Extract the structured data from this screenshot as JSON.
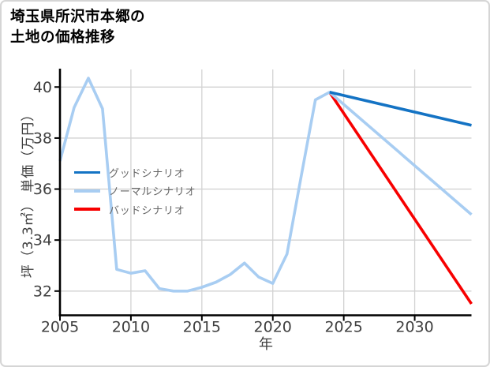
{
  "frame": {
    "border_color": "#d5d5d5",
    "background": "#ffffff"
  },
  "title": {
    "line1": "埼玉県所沢市本郷の",
    "line2": "土地の価格推移"
  },
  "chart_data": {
    "type": "line",
    "title": "埼玉県所沢市本郷の土地の価格推移",
    "xlabel": "年",
    "ylabel": "坪（3.3㎡） 単価（万円）",
    "xlim": [
      2005,
      2034
    ],
    "ylim": [
      31.05,
      40.69
    ],
    "xticks": [
      2005,
      2010,
      2015,
      2020,
      2025,
      2030
    ],
    "yticks": [
      32,
      34,
      36,
      38,
      40
    ],
    "grid": true,
    "grid_color": "#d2d2d2",
    "axis_color": "#000000",
    "tick_label_color": "#404040",
    "axis_title_color": "#3d3d3d",
    "legend_text_color": "#666666",
    "legend_position": "inside-upper-left",
    "series": [
      {
        "name": "グッドシナリオ",
        "color": "#1473c4",
        "x": [
          2024,
          2034
        ],
        "values": [
          39.8,
          38.5
        ]
      },
      {
        "name": "ノーマルシナリオ",
        "color": "#a8cdf2",
        "x": [
          2005,
          2006,
          2007,
          2008,
          2009,
          2010,
          2011,
          2012,
          2013,
          2014,
          2015,
          2016,
          2017,
          2018,
          2019,
          2020,
          2021,
          2022,
          2023,
          2024,
          2034
        ],
        "values": [
          37.1,
          39.2,
          40.35,
          39.15,
          32.85,
          32.7,
          32.8,
          32.1,
          32.0,
          32.0,
          32.15,
          32.35,
          32.65,
          33.1,
          32.55,
          32.3,
          33.45,
          36.5,
          39.5,
          39.8,
          35.0
        ]
      },
      {
        "name": "バッドシナリオ",
        "color": "#f70000",
        "x": [
          2024,
          2034
        ],
        "values": [
          39.8,
          31.5
        ]
      }
    ]
  }
}
